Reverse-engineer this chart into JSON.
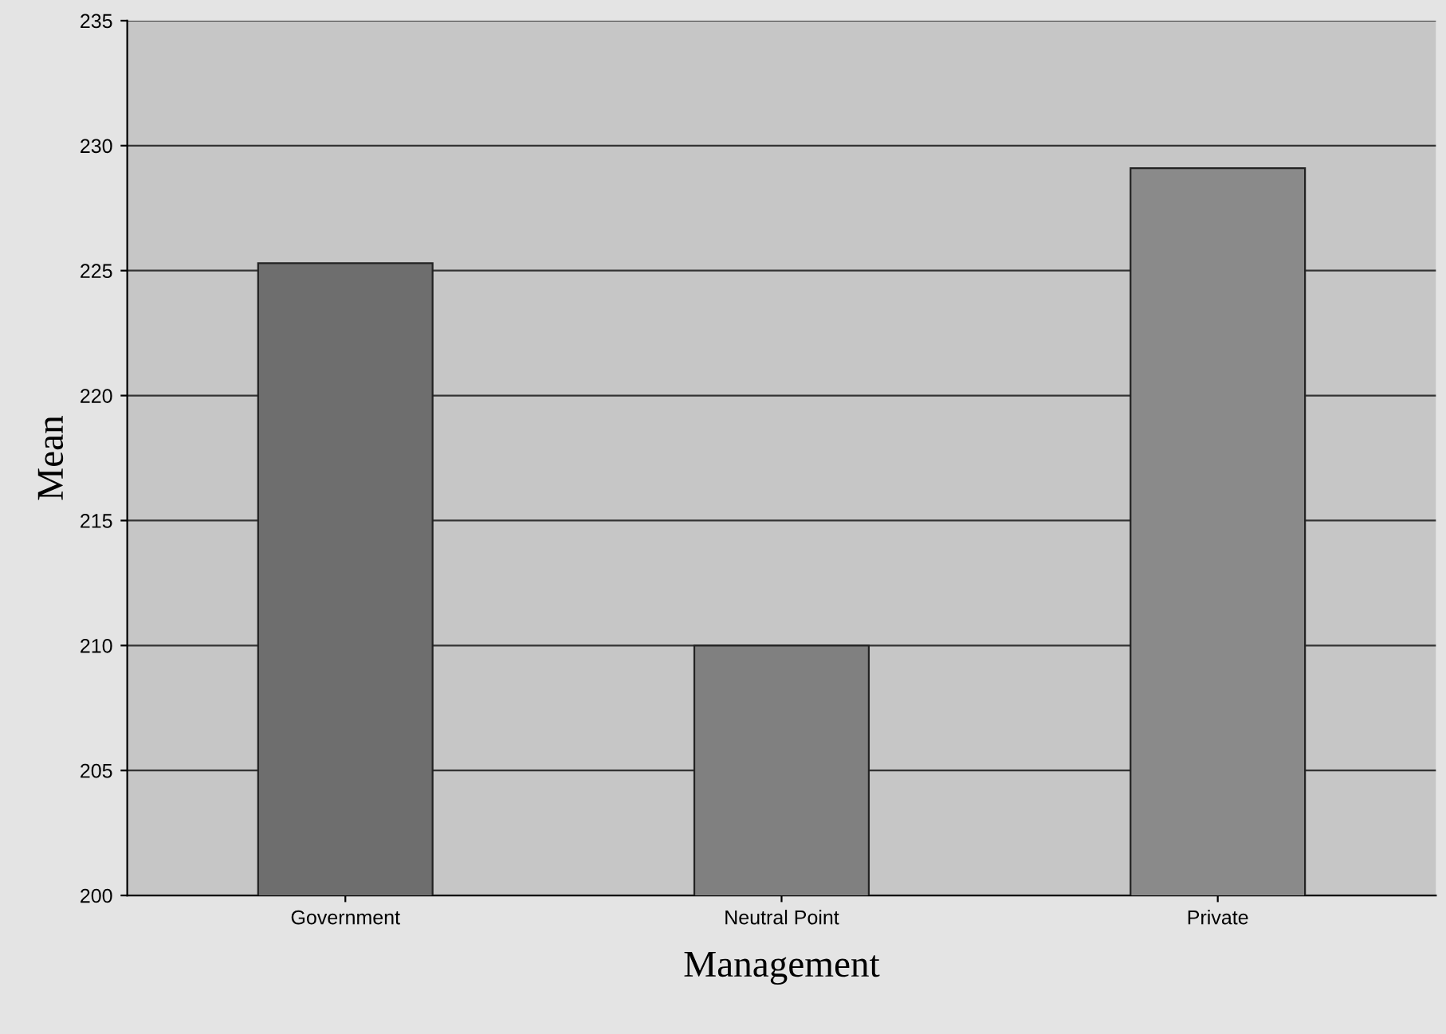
{
  "chart_data": {
    "type": "bar",
    "xlabel": "Management",
    "ylabel": "Mean",
    "categories": [
      "Government",
      "Neutral Point",
      "Private"
    ],
    "values": [
      225.3,
      210.0,
      229.1
    ],
    "colors": [
      "#6e6e6e",
      "#808080",
      "#8a8a8a"
    ],
    "ylim": [
      200,
      235
    ],
    "yticks": [
      200,
      205,
      210,
      215,
      220,
      225,
      230,
      235
    ],
    "grid": "y"
  }
}
